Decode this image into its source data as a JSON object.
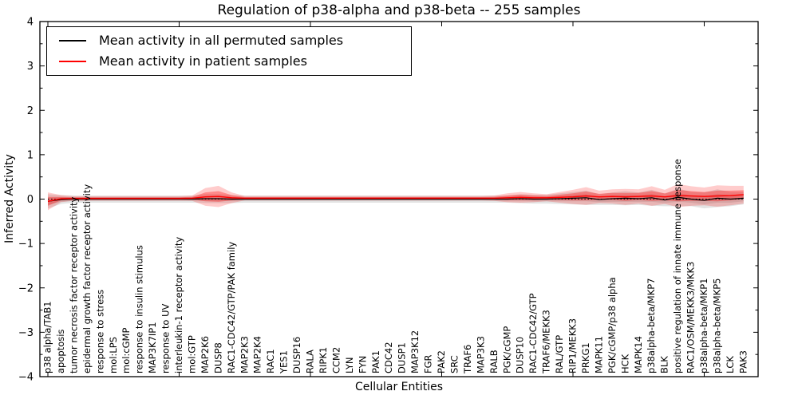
{
  "chart_data": {
    "type": "line",
    "title": "Regulation of p38-alpha and p38-beta -- 255 samples",
    "xlabel": "Cellular Entities",
    "ylabel": "Inferred Activity",
    "ylim": [
      -4,
      4
    ],
    "grid": false,
    "legend_position": "upper left",
    "zero_reference_line": {
      "value": 0,
      "style": "dotted",
      "color": "#000000"
    },
    "y_ticks": [
      {
        "value": 4,
        "label": "4"
      },
      {
        "value": 3,
        "label": "3"
      },
      {
        "value": 2,
        "label": "2"
      },
      {
        "value": 1,
        "label": "1"
      },
      {
        "value": 0,
        "label": "0"
      },
      {
        "value": -1,
        "label": "−1"
      },
      {
        "value": -2,
        "label": "−2"
      },
      {
        "value": -3,
        "label": "−3"
      },
      {
        "value": -4,
        "label": "−4"
      }
    ],
    "categories": [
      "p38 alpha/TAB1",
      "apoptosis",
      "tumor necrosis factor receptor activity",
      "epidermal growth factor receptor activity",
      "response to stress",
      "mol:LPS",
      "mol:cGMP",
      "response to insulin stimulus",
      "MAP3K7IP1",
      "response to UV",
      "interleukin-1 receptor activity",
      "mol:GTP",
      "MAP2K6",
      "DUSP8",
      "RAC1-CDC42/GTP/PAK family",
      "MAP2K3",
      "MAP2K4",
      "RAC1",
      "YES1",
      "DUSP16",
      "RALA",
      "RIPK1",
      "CCM2",
      "LYN",
      "FYN",
      "PAK1",
      "CDC42",
      "DUSP1",
      "MAP3K12",
      "FGR",
      "PAK2",
      "SRC",
      "TRAF6",
      "MAP3K3",
      "RALB",
      "PGK/cGMP",
      "DUSP10",
      "RAC1-CDC42/GTP",
      "TRAF6/MEKK3",
      "RAL/GTP",
      "RIP1/MEKK3",
      "PRKG1",
      "MAPK11",
      "PGK/cGMP/p38 alpha",
      "HCK",
      "MAPK14",
      "p38alpha-beta/MKP7",
      "BLK",
      "positive regulation of innate immune response",
      "RAC1/OSM/MEKK3/MKK3",
      "p38alpha-beta/MKP1",
      "p38alpha-beta/MKP5",
      "LCK",
      "PAK3"
    ],
    "series": [
      {
        "name": "Mean activity in all permuted samples",
        "color": "#000000",
        "values": [
          -0.05,
          -0.01,
          0,
          0,
          0,
          0,
          0,
          0,
          0,
          0,
          0,
          0,
          0.01,
          0.01,
          0,
          0,
          0,
          0,
          0,
          0,
          0,
          0,
          0,
          0,
          0,
          0,
          0,
          0,
          0,
          0,
          0,
          0,
          0,
          0,
          0,
          0,
          0.01,
          0,
          0,
          0.01,
          0.02,
          0.03,
          -0.01,
          0.01,
          0.02,
          0.01,
          0.03,
          -0.02,
          0.04,
          0,
          -0.03,
          0.02,
          0,
          0.02
        ],
        "band_halfwidth": [
          0.08,
          0.05,
          0.04,
          0.04,
          0.04,
          0.04,
          0.04,
          0.04,
          0.04,
          0.04,
          0.04,
          0.04,
          0.05,
          0.05,
          0.045,
          0.04,
          0.04,
          0.04,
          0.04,
          0.04,
          0.04,
          0.04,
          0.04,
          0.04,
          0.04,
          0.04,
          0.04,
          0.04,
          0.04,
          0.04,
          0.04,
          0.04,
          0.04,
          0.04,
          0.04,
          0.04,
          0.05,
          0.05,
          0.05,
          0.06,
          0.07,
          0.08,
          0.06,
          0.07,
          0.08,
          0.07,
          0.09,
          0.07,
          0.1,
          0.08,
          0.09,
          0.1,
          0.08,
          0.07
        ]
      },
      {
        "name": "Mean activity in patient samples",
        "color": "#ff0000",
        "values": [
          -0.05,
          0.01,
          0.015,
          0.015,
          0.015,
          0.015,
          0.015,
          0.015,
          0.015,
          0.015,
          0.015,
          0.02,
          0.05,
          0.06,
          0.03,
          0.02,
          0.02,
          0.02,
          0.02,
          0.02,
          0.02,
          0.02,
          0.02,
          0.02,
          0.02,
          0.02,
          0.02,
          0.02,
          0.02,
          0.02,
          0.02,
          0.02,
          0.02,
          0.02,
          0.02,
          0.03,
          0.04,
          0.03,
          0.03,
          0.04,
          0.05,
          0.07,
          0.05,
          0.06,
          0.05,
          0.06,
          0.07,
          0.05,
          0.08,
          0.07,
          0.06,
          0.07,
          0.08,
          0.1
        ],
        "band_halfwidth": [
          0.1,
          0.04,
          0.025,
          0.025,
          0.025,
          0.025,
          0.025,
          0.025,
          0.025,
          0.025,
          0.025,
          0.03,
          0.1,
          0.12,
          0.06,
          0.025,
          0.025,
          0.025,
          0.025,
          0.025,
          0.025,
          0.025,
          0.025,
          0.025,
          0.025,
          0.025,
          0.025,
          0.025,
          0.025,
          0.025,
          0.025,
          0.025,
          0.025,
          0.025,
          0.03,
          0.05,
          0.06,
          0.05,
          0.04,
          0.06,
          0.08,
          0.1,
          0.07,
          0.08,
          0.09,
          0.08,
          0.11,
          0.08,
          0.13,
          0.11,
          0.1,
          0.12,
          0.11,
          0.1
        ]
      }
    ]
  },
  "legend": {
    "items": [
      {
        "label": "Mean activity in all permuted samples",
        "color": "#000000"
      },
      {
        "label": "Mean activity in patient samples",
        "color": "#ff0000"
      }
    ]
  }
}
